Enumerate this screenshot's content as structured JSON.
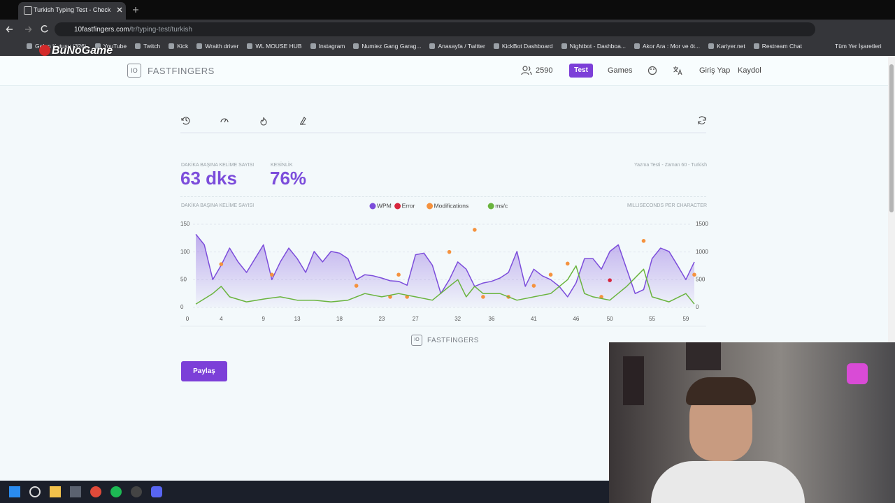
{
  "browser": {
    "tab_title": "Turkish Typing Test - Check You",
    "url_host": "10fastfingers.com",
    "url_path": "/tr/typing-test/turkish",
    "bookmarks": [
      "Gelen Kutusu (326)",
      "YouTube",
      "Twitch",
      "Kick",
      "Wraith driver",
      "WL MOUSE HUB",
      "Instagram",
      "Numiez Gang Garag...",
      "Anasayfa / Twitter",
      "KickBot Dashboard",
      "Nightbot - Dashboa...",
      "Akor Ara : Mor ve öt...",
      "Kariyer.net",
      "Restream Chat"
    ],
    "all_bookmarks": "Tüm Yer İşaretleri"
  },
  "watermark": "BuNoGame",
  "header": {
    "logo_mark": "IO",
    "logo": "FASTFINGERS",
    "online": "2590",
    "nav": [
      "Test",
      "Games",
      "Giriş Yap",
      "Kaydol"
    ]
  },
  "stats": {
    "wpm_label": "DAKİKA BAŞINA KELİME SAYISI",
    "wpm": "63 dks",
    "accuracy_label": "KESİNLİK",
    "accuracy": "76%",
    "info": "Yazma Testi - Zaman 60 - Turkish"
  },
  "chart_data": {
    "type": "line",
    "y_label": "DAKİKA BAŞINA KELİME SAYISI",
    "y2_label": "MILLISECONDS PER CHARACTER",
    "xlim": [
      0,
      60
    ],
    "xticks": [
      0,
      4,
      9,
      13,
      18,
      23,
      27,
      32,
      36,
      41,
      46,
      50,
      55,
      59
    ],
    "ylim": [
      0,
      150
    ],
    "yticks": [
      0,
      50,
      100,
      150
    ],
    "y2lim": [
      0,
      1500
    ],
    "y2ticks": [
      0,
      500,
      1000,
      1500
    ],
    "grid": true,
    "series": [
      {
        "name": "WPM",
        "color": "#7c4ddb",
        "area": true,
        "x": [
          1,
          2,
          3,
          4,
          5,
          6,
          7,
          8,
          9,
          10,
          11,
          12,
          13,
          14,
          15,
          16,
          17,
          18,
          19,
          20,
          21,
          22,
          23,
          24,
          25,
          26,
          27,
          28,
          29,
          30,
          31,
          32,
          33,
          34,
          35,
          36,
          37,
          38,
          39,
          40,
          41,
          42,
          43,
          44,
          45,
          46,
          47,
          48,
          49,
          50,
          51,
          52,
          53,
          54,
          55,
          56,
          57,
          58,
          59,
          60
        ],
        "values": [
          132,
          113,
          50,
          76,
          107,
          82,
          63,
          88,
          113,
          50,
          82,
          107,
          88,
          63,
          101,
          82,
          101,
          98,
          88,
          50,
          59,
          57,
          53,
          48,
          47,
          40,
          95,
          98,
          76,
          25,
          50,
          82,
          69,
          38,
          44,
          47,
          53,
          63,
          101,
          38,
          69,
          57,
          50,
          38,
          19,
          44,
          88,
          88,
          69,
          101,
          113,
          69,
          25,
          32,
          88,
          107,
          101,
          76,
          50,
          82
        ]
      },
      {
        "name": "Error",
        "color": "#d7263d",
        "style": "dots",
        "x": [
          50
        ],
        "values": [
          49
        ]
      },
      {
        "name": "Modifications",
        "color": "#f5923e",
        "style": "dots",
        "x": [
          4,
          10,
          20,
          24,
          25,
          26,
          31,
          34,
          35,
          38,
          41,
          43,
          45,
          49,
          54,
          60
        ],
        "values": [
          78,
          59,
          39,
          19,
          59,
          19,
          100,
          140,
          19,
          19,
          39,
          59,
          79,
          19,
          120,
          59
        ]
      },
      {
        "name": "ms/c",
        "color": "#6ab43e",
        "axis": "y2",
        "x": [
          1,
          3,
          4,
          5,
          7,
          9,
          11,
          13,
          15,
          17,
          19,
          21,
          23,
          25,
          27,
          29,
          31,
          32,
          33,
          34,
          35,
          37,
          39,
          41,
          43,
          45,
          46,
          47,
          48,
          50,
          52,
          54,
          55,
          57,
          59,
          60
        ],
        "values": [
          60,
          250,
          380,
          190,
          100,
          150,
          190,
          130,
          130,
          100,
          130,
          250,
          190,
          250,
          190,
          130,
          380,
          500,
          190,
          380,
          250,
          250,
          130,
          190,
          250,
          500,
          750,
          250,
          190,
          130,
          380,
          690,
          190,
          100,
          250,
          60
        ]
      }
    ]
  },
  "footer": {
    "logo_mark": "IO",
    "logo": "FASTFINGERS",
    "share": "Paylaş"
  }
}
